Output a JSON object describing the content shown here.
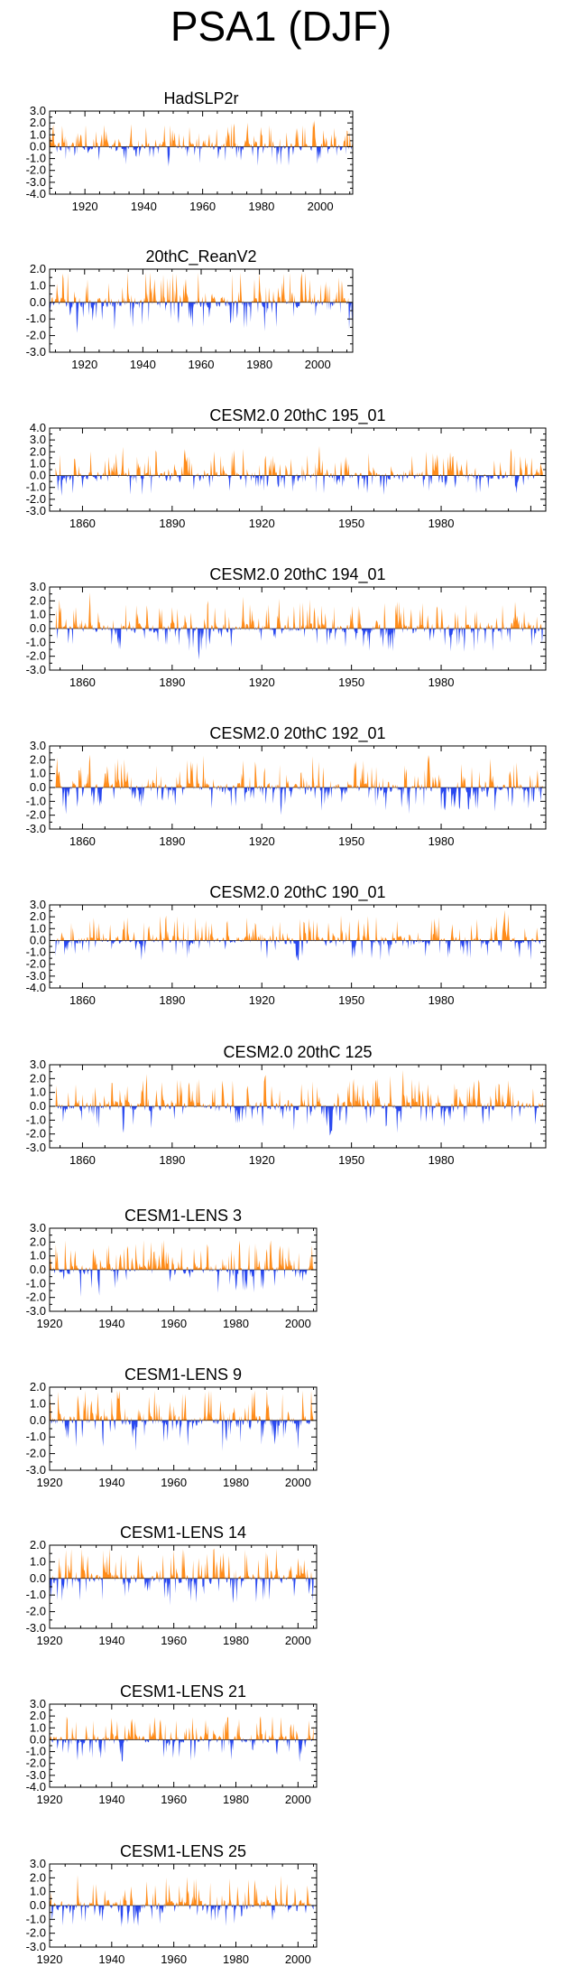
{
  "title": "PSA1 (DJF)",
  "colors": {
    "positive": "#ff8c1a",
    "negative": "#2948f0",
    "axis": "#000000"
  },
  "chart_data": [
    {
      "type": "area",
      "title": "HadSLP2r",
      "xlim": [
        1908,
        2011
      ],
      "ylim": [
        -4.0,
        3.0
      ],
      "yticks": [
        "3.0",
        "2.0",
        "1.0",
        "0.0",
        "-1.0",
        "-2.0",
        "-3.0",
        "-4.0"
      ],
      "xticks": [
        1920,
        1940,
        1960,
        1980,
        2000
      ],
      "start": 1908,
      "end": 2011,
      "seed": 1
    },
    {
      "type": "area",
      "title": "20thC_ReanV2",
      "xlim": [
        1908,
        2012
      ],
      "ylim": [
        -3.0,
        2.0
      ],
      "yticks": [
        "2.0",
        "1.0",
        "0.0",
        "-1.0",
        "-2.0",
        "-3.0"
      ],
      "xticks": [
        1920,
        1940,
        1960,
        1980,
        2000
      ],
      "start": 1908,
      "end": 2012,
      "seed": 2
    },
    {
      "type": "area",
      "title": "CESM2.0 20thC 195_01",
      "xlim": [
        1849,
        2015
      ],
      "ylim": [
        -3.0,
        4.0
      ],
      "yticks": [
        "4.0",
        "3.0",
        "2.0",
        "1.0",
        "0.0",
        "-1.0",
        "-2.0",
        "-3.0"
      ],
      "xticks": [
        1860,
        1890,
        1920,
        1950,
        1980
      ],
      "start": 1851,
      "end": 2014,
      "seed": 3
    },
    {
      "type": "area",
      "title": "CESM2.0 20thC 194_01",
      "xlim": [
        1849,
        2015
      ],
      "ylim": [
        -3.0,
        3.0
      ],
      "yticks": [
        "3.0",
        "2.0",
        "1.0",
        "0.0",
        "-1.0",
        "-2.0",
        "-3.0"
      ],
      "xticks": [
        1860,
        1890,
        1920,
        1950,
        1980
      ],
      "start": 1851,
      "end": 2014,
      "seed": 4
    },
    {
      "type": "area",
      "title": "CESM2.0 20thC 192_01",
      "xlim": [
        1849,
        2015
      ],
      "ylim": [
        -3.0,
        3.0
      ],
      "yticks": [
        "3.0",
        "2.0",
        "1.0",
        "0.0",
        "-1.0",
        "-2.0",
        "-3.0"
      ],
      "xticks": [
        1860,
        1890,
        1920,
        1950,
        1980
      ],
      "start": 1851,
      "end": 2014,
      "seed": 5
    },
    {
      "type": "area",
      "title": "CESM2.0 20thC 190_01",
      "xlim": [
        1849,
        2015
      ],
      "ylim": [
        -4.0,
        3.0
      ],
      "yticks": [
        "3.0",
        "2.0",
        "1.0",
        "0.0",
        "-1.0",
        "-2.0",
        "-3.0",
        "-4.0"
      ],
      "xticks": [
        1860,
        1890,
        1920,
        1950,
        1980
      ],
      "start": 1851,
      "end": 2014,
      "seed": 6
    },
    {
      "type": "area",
      "title": "CESM2.0 20thC 125",
      "xlim": [
        1849,
        2015
      ],
      "ylim": [
        -3.0,
        3.0
      ],
      "yticks": [
        "3.0",
        "2.0",
        "1.0",
        "0.0",
        "-1.0",
        "-2.0",
        "-3.0"
      ],
      "xticks": [
        1860,
        1890,
        1920,
        1950,
        1980
      ],
      "start": 1851,
      "end": 2014,
      "seed": 7
    },
    {
      "type": "area",
      "title": "CESM1-LENS 3",
      "xlim": [
        1920,
        2006
      ],
      "ylim": [
        -3.0,
        3.0
      ],
      "yticks": [
        "3.0",
        "2.0",
        "1.0",
        "0.0",
        "-1.0",
        "-2.0",
        "-3.0"
      ],
      "xticks": [
        1920,
        1940,
        1960,
        1980,
        2000
      ],
      "start": 1920,
      "end": 2005,
      "seed": 8
    },
    {
      "type": "area",
      "title": "CESM1-LENS 9",
      "xlim": [
        1920,
        2006
      ],
      "ylim": [
        -3.0,
        2.0
      ],
      "yticks": [
        "2.0",
        "1.0",
        "0.0",
        "-1.0",
        "-2.0",
        "-3.0"
      ],
      "xticks": [
        1920,
        1940,
        1960,
        1980,
        2000
      ],
      "start": 1920,
      "end": 2005,
      "seed": 9
    },
    {
      "type": "area",
      "title": "CESM1-LENS 14",
      "xlim": [
        1920,
        2006
      ],
      "ylim": [
        -3.0,
        2.0
      ],
      "yticks": [
        "2.0",
        "1.0",
        "0.0",
        "-1.0",
        "-2.0",
        "-3.0"
      ],
      "xticks": [
        1920,
        1940,
        1960,
        1980,
        2000
      ],
      "start": 1920,
      "end": 2005,
      "seed": 10
    },
    {
      "type": "area",
      "title": "CESM1-LENS 21",
      "xlim": [
        1920,
        2006
      ],
      "ylim": [
        -4.0,
        3.0
      ],
      "yticks": [
        "3.0",
        "2.0",
        "1.0",
        "0.0",
        "-1.0",
        "-2.0",
        "-3.0",
        "-4.0"
      ],
      "xticks": [
        1920,
        1940,
        1960,
        1980,
        2000
      ],
      "start": 1920,
      "end": 2005,
      "seed": 11
    },
    {
      "type": "area",
      "title": "CESM1-LENS 25",
      "xlim": [
        1920,
        2006
      ],
      "ylim": [
        -3.0,
        3.0
      ],
      "yticks": [
        "3.0",
        "2.0",
        "1.0",
        "0.0",
        "-1.0",
        "-2.0",
        "-3.0"
      ],
      "xticks": [
        1920,
        1940,
        1960,
        1980,
        2000
      ],
      "start": 1920,
      "end": 2005,
      "seed": 12
    }
  ]
}
